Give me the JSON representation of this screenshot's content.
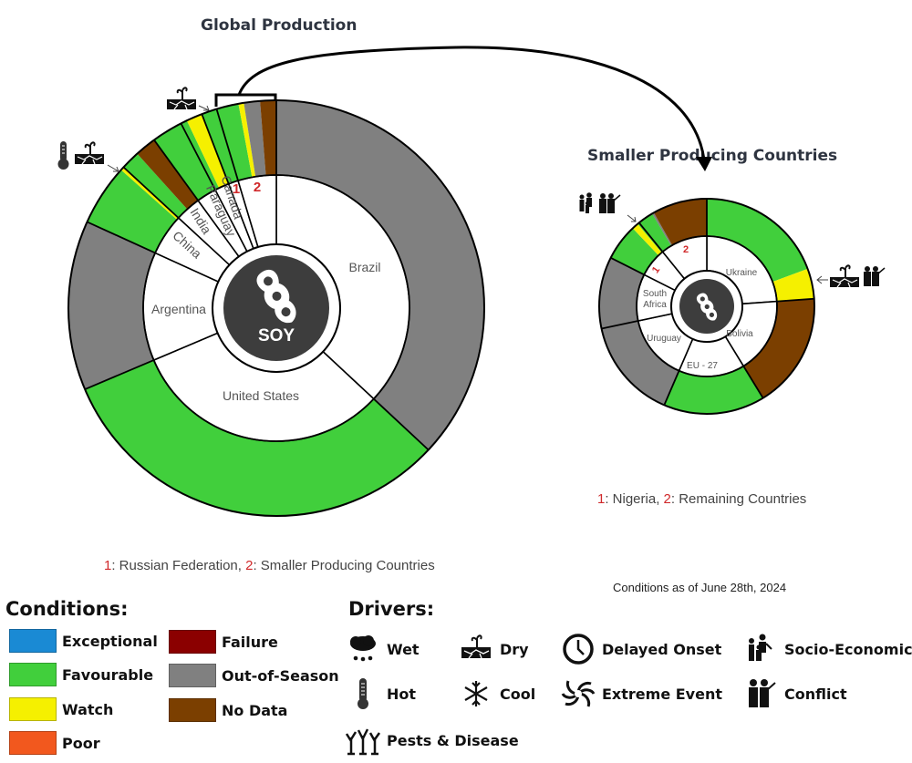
{
  "titles": {
    "global": "Global Production",
    "smaller": "Smaller Producing Countries"
  },
  "center_label": "SOY",
  "footnotes": {
    "global": {
      "n1": "1",
      "t1": ": Russian Federation, ",
      "n2": "2",
      "t2": ": Smaller Producing Countries"
    },
    "smaller": {
      "n1": "1",
      "t1": ": Nigeria, ",
      "n2": "2",
      "t2": ": Remaining Countries"
    }
  },
  "date_note": "Conditions as of June 28th, 2024",
  "colors": {
    "exceptional": "#1a8ad4",
    "favourable": "#41cf3c",
    "watch": "#f5f000",
    "poor": "#f2581e",
    "failure": "#8b0000",
    "out_of_season": "#808080",
    "no_data": "#7b3f00",
    "center": "#3d3d3d",
    "footnote_number": "#d0282a"
  },
  "legend": {
    "conditions_title": "Conditions:",
    "conditions": [
      {
        "label": "Exceptional",
        "color": "#1a8ad4"
      },
      {
        "label": "Favourable",
        "color": "#41cf3c"
      },
      {
        "label": "Watch",
        "color": "#f5f000"
      },
      {
        "label": "Poor",
        "color": "#f2581e"
      },
      {
        "label": "Failure",
        "color": "#8b0000"
      },
      {
        "label": "Out-of-Season",
        "color": "#808080"
      },
      {
        "label": "No Data",
        "color": "#7b3f00"
      }
    ],
    "drivers_title": "Drivers:",
    "drivers": [
      {
        "label": "Wet",
        "icon": "wet-icon"
      },
      {
        "label": "Dry",
        "icon": "dry-icon"
      },
      {
        "label": "Delayed Onset",
        "icon": "clock-icon"
      },
      {
        "label": "Socio-Economic",
        "icon": "people-icon"
      },
      {
        "label": "Hot",
        "icon": "thermometer-icon"
      },
      {
        "label": "Cool",
        "icon": "snowflake-icon"
      },
      {
        "label": "Extreme Event",
        "icon": "cyclone-icon"
      },
      {
        "label": "Conflict",
        "icon": "soldiers-icon"
      },
      {
        "label": "Pests & Disease",
        "icon": "trees-icon"
      }
    ]
  },
  "chart_data": [
    {
      "type": "pie",
      "title": "Global Production",
      "subtype": "nested donut (inner: country share of production; outer: crop condition within country)",
      "center": "SOY",
      "angles_unit": "degrees clockwise from top (share of 360)",
      "countries": [
        {
          "name": "Brazil",
          "label": "Brazil",
          "start": 0,
          "end": 133,
          "conditions": [
            {
              "c": "out_of_season",
              "from": 0,
              "to": 133
            }
          ]
        },
        {
          "name": "United States",
          "label": "United States",
          "start": 133,
          "end": 247,
          "conditions": [
            {
              "c": "favourable",
              "from": 133,
              "to": 247
            }
          ]
        },
        {
          "name": "Argentina",
          "label": "Argentina",
          "start": 247,
          "end": 294.5,
          "conditions": [
            {
              "c": "out_of_season",
              "from": 247,
              "to": 294.5
            }
          ]
        },
        {
          "name": "China",
          "label": "China",
          "start": 294.5,
          "end": 312.7,
          "drivers": [
            "Hot",
            "Dry"
          ],
          "conditions": [
            {
              "c": "favourable",
              "from": 294.5,
              "to": 311.7
            },
            {
              "c": "watch",
              "from": 311.7,
              "to": 312.7
            }
          ]
        },
        {
          "name": "India",
          "label": "India",
          "start": 312.7,
          "end": 324,
          "conditions": [
            {
              "c": "favourable",
              "from": 312.7,
              "to": 318
            },
            {
              "c": "no_data",
              "from": 318,
              "to": 324
            }
          ]
        },
        {
          "name": "Paraguay",
          "label": "Paraguay",
          "start": 324,
          "end": 332.7,
          "conditions": [
            {
              "c": "favourable",
              "from": 324,
              "to": 332.7
            }
          ]
        },
        {
          "name": "Canada",
          "label": "Canada",
          "start": 332.7,
          "end": 339,
          "drivers": [
            "Dry"
          ],
          "conditions": [
            {
              "c": "favourable",
              "from": 332.7,
              "to": 334.5
            },
            {
              "c": "watch",
              "from": 334.5,
              "to": 339
            }
          ]
        },
        {
          "name": "Russian Federation",
          "label": "1",
          "start": 339,
          "end": 343.3,
          "conditions": [
            {
              "c": "favourable",
              "from": 339,
              "to": 343.3
            }
          ]
        },
        {
          "name": "Smaller Producing Countries",
          "label": "2",
          "start": 343.3,
          "end": 360,
          "conditions": [
            {
              "c": "favourable",
              "from": 343.3,
              "to": 349.5
            },
            {
              "c": "watch",
              "from": 349.5,
              "to": 351
            },
            {
              "c": "out_of_season",
              "from": 351,
              "to": 355.5
            },
            {
              "c": "no_data",
              "from": 355.5,
              "to": 360
            }
          ]
        }
      ]
    },
    {
      "type": "pie",
      "title": "Smaller Producing Countries",
      "subtype": "nested donut",
      "angles_unit": "degrees clockwise from top (share of 360)",
      "countries": [
        {
          "name": "Ukraine",
          "label": "Ukraine",
          "start": 0,
          "end": 86,
          "drivers": [
            "Dry",
            "Conflict"
          ],
          "conditions": [
            {
              "c": "favourable",
              "from": 0,
              "to": 69.6
            },
            {
              "c": "watch",
              "from": 69.6,
              "to": 86
            }
          ]
        },
        {
          "name": "Bolivia",
          "label": "Bolivia",
          "start": 86,
          "end": 148.5,
          "conditions": [
            {
              "c": "no_data",
              "from": 86,
              "to": 148.5
            }
          ]
        },
        {
          "name": "EU - 27",
          "label": "EU - 27",
          "start": 148.5,
          "end": 203.3,
          "conditions": [
            {
              "c": "favourable",
              "from": 148.5,
              "to": 203.3
            }
          ]
        },
        {
          "name": "Uruguay",
          "label": "Uruguay",
          "start": 203.3,
          "end": 258,
          "conditions": [
            {
              "c": "out_of_season",
              "from": 203.3,
              "to": 258
            }
          ]
        },
        {
          "name": "South Africa",
          "label": "South Africa",
          "start": 258,
          "end": 296.8,
          "conditions": [
            {
              "c": "out_of_season",
              "from": 258,
              "to": 296.8
            }
          ]
        },
        {
          "name": "Nigeria",
          "label": "1",
          "start": 296.8,
          "end": 321,
          "drivers": [
            "Socio-Economic",
            "Conflict"
          ],
          "conditions": [
            {
              "c": "favourable",
              "from": 296.8,
              "to": 316.5
            },
            {
              "c": "watch",
              "from": 316.5,
              "to": 320
            },
            {
              "c": "favourable",
              "from": 320,
              "to": 321
            }
          ]
        },
        {
          "name": "Remaining Countries",
          "label": "2",
          "start": 321,
          "end": 360,
          "conditions": [
            {
              "c": "favourable",
              "from": 321,
              "to": 329.5
            },
            {
              "c": "out_of_season",
              "from": 329.5,
              "to": 330.5
            },
            {
              "c": "no_data",
              "from": 330.5,
              "to": 360
            }
          ]
        }
      ]
    }
  ]
}
